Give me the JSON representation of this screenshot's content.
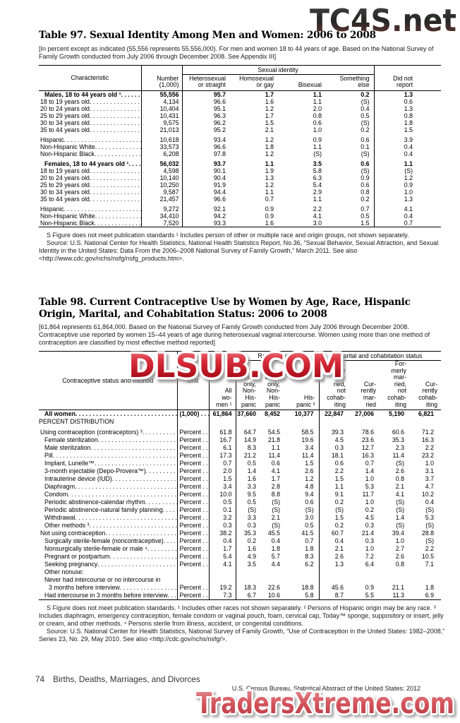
{
  "watermarks": {
    "top": "TC4S.net",
    "middle": "DLSUB.COM",
    "bottom": "TradersXtreme.com",
    "red_color": "#c41a28",
    "dark_color": "#3b3b3b"
  },
  "table97": {
    "title": "Table 97. Sexual Identity Among Men and Women: 2006 to 2008",
    "note": "[In percent except as indicated (55,556 represents 55,556,000). For men and women 18 to 44 years of age. Based on the National Survey of Family Growth conducted from July 2006 through December 2008. See Appendix III]",
    "header": {
      "characteristic": "Characteristic",
      "number": "Number\n(1,000)",
      "group": "Sexual identity",
      "identity_cols": [
        "Heterosexual\nor straight",
        "Homosexual\nor gay",
        "Bisexual",
        "Something\nelse"
      ],
      "did_not_report": "Did not\nreport"
    },
    "rows": [
      {
        "label": "Males, 18 to 44 years old ¹",
        "bold": true,
        "values": [
          "55,556",
          "95.7",
          "1.7",
          "1.1",
          "0.2",
          "1.3"
        ]
      },
      {
        "label": "18 to 19 years old",
        "values": [
          "4,134",
          "96.6",
          "1.6",
          "1.1",
          "(S)",
          "0.6"
        ]
      },
      {
        "label": "20 to 24 years old",
        "values": [
          "10,404",
          "95.1",
          "1.2",
          "2.0",
          "0.4",
          "1.3"
        ]
      },
      {
        "label": "25 to 29 years old",
        "values": [
          "10,431",
          "96.3",
          "1.7",
          "0.8",
          "0.5",
          "0.8"
        ]
      },
      {
        "label": "30 to 34 years old",
        "values": [
          "9,575",
          "96.2",
          "1.5",
          "0.6",
          "(S)",
          "1.8"
        ]
      },
      {
        "label": "35 to 44 years old",
        "values": [
          "21,013",
          "95.2",
          "2.1",
          "1.0",
          "0.2",
          "1.5"
        ]
      },
      {
        "label": "Hispanic",
        "gap": true,
        "values": [
          "10,618",
          "93.4",
          "1.2",
          "0.9",
          "0.6",
          "3.9"
        ]
      },
      {
        "label": "Non-Hispanic White",
        "values": [
          "33,573",
          "96.6",
          "1.8",
          "1.1",
          "0.1",
          "0.4"
        ]
      },
      {
        "label": "Non-Hispanic Black",
        "values": [
          "6,208",
          "97.8",
          "1.2",
          "(S)",
          "(S)",
          "0.4"
        ]
      },
      {
        "label": "Females, 18 to 44 years old ¹",
        "bold": true,
        "gap": true,
        "values": [
          "56,032",
          "93.7",
          "1.1",
          "3.5",
          "0.6",
          "1.1"
        ]
      },
      {
        "label": "18 to 19 years old",
        "values": [
          "4,598",
          "90.1",
          "1.9",
          "5.8",
          "(S)",
          "(S)"
        ]
      },
      {
        "label": "20 to 24 years old",
        "values": [
          "10,140",
          "90.4",
          "1.3",
          "6.3",
          "0.9",
          "1.2"
        ]
      },
      {
        "label": "25 to 29 years old",
        "values": [
          "10,250",
          "91.9",
          "1.2",
          "5.4",
          "0.6",
          "0.9"
        ]
      },
      {
        "label": "30 to 34 years old",
        "values": [
          "9,587",
          "94.4",
          "1.1",
          "2.9",
          "0.8",
          "1.0"
        ]
      },
      {
        "label": "35 to 44 years old",
        "values": [
          "21,457",
          "96.6",
          "0.7",
          "1.1",
          "0.2",
          "1.3"
        ]
      },
      {
        "label": "Hispanic",
        "gap": true,
        "values": [
          "9,272",
          "92.1",
          "0.9",
          "2.2",
          "0.7",
          "4.1"
        ]
      },
      {
        "label": "Non-Hispanic White",
        "values": [
          "34,410",
          "94.2",
          "0.9",
          "4.1",
          "0.5",
          "0.4"
        ]
      },
      {
        "label": "Non-Hispanic Black",
        "values": [
          "7,520",
          "93.3",
          "1.6",
          "3.0",
          "1.5",
          "0.7"
        ]
      }
    ],
    "footnotes": [
      "S Figure does not meet publication standards ¹ Includes person of other or multiple race and origin groups, not shown separately.",
      "Source: U.S. National Center for Health Statistics, National Health Statistics Report, No.36, “Sexual Behavior, Sexual Attraction, and Sexual Identity in the United States: Data From the 2006–2008 National Survey of Family Growth,” March 2011. See also <http://www.cdc.gov/nchs/nsfg/nsfg_products.htm>."
    ]
  },
  "table98": {
    "title": "Table 98. Current Contraceptive Use by Women by Age, Race, Hispanic\nOrigin, Marital, and Cohabitation Status: 2006 to 2008",
    "note": "[61,864 represents 61,864,000. Based on the National Survey of Family Growth conducted from July 2006 through December 2008. Contraceptive use reported by women 15–44 years of age during heterosexual vaginal intercourse. Women using more than one method of contraception are classified by most effective method reported]",
    "header": {
      "method": "Contraceptive status and method",
      "unit": "Unit",
      "all_women": "All\nwo-\nmen ¹",
      "race_group": "Race/ethnicity",
      "race_cols": [
        "White\nonly,\nNon-\nHis-\npanic",
        "Black\nonly,\nNon-\nHis-\npanic",
        "His-\npanic ²"
      ],
      "marital_group": "Marital and cohabitation status",
      "marital_cols": [
        "Never\nmar-\nried,\nnot\ncohab-\niting",
        "Cur-\nrently\nmar-\nried",
        "For-\nmerly\nmar-\nried,\nnot\ncohab-\niting",
        "Cur-\nrently\ncohab-\niting"
      ]
    },
    "rows": [
      {
        "label": "All women",
        "bold": true,
        "unit": "(1,000) . . .",
        "indent": 0,
        "values": [
          "61,864",
          "37,660",
          "8,452",
          "10,377",
          "22,847",
          "27,006",
          "5,190",
          "6,821"
        ]
      },
      {
        "label": "PERCENT DISTRIBUTION",
        "section": true,
        "indent": 0
      },
      {
        "label": "Using contraception (contraceptors) ³",
        "unit": "Percent . .",
        "indent": 0,
        "gap": true,
        "values": [
          "61.8",
          "64.7",
          "54.5",
          "58.5",
          "39.3",
          "78.6",
          "60.6",
          "71.2"
        ]
      },
      {
        "label": "Female sterilization",
        "unit": "Percent . .",
        "indent": 1,
        "values": [
          "16.7",
          "14.9",
          "21.8",
          "19.6",
          "4.5",
          "23.6",
          "35.3",
          "16.3"
        ]
      },
      {
        "label": "Male sterilization",
        "unit": "Percent . .",
        "indent": 1,
        "values": [
          "6.1",
          "8.3",
          "1.1",
          "3.4",
          "0.3",
          "12.7",
          "2.3",
          "2.2"
        ]
      },
      {
        "label": "Pill",
        "unit": "Percent . .",
        "indent": 1,
        "values": [
          "17.3",
          "21.2",
          "11.4",
          "11.4",
          "18.1",
          "16.3",
          "11.4",
          "23.2"
        ]
      },
      {
        "label": "Implant, Lunelle™",
        "unit": "Percent . .",
        "indent": 1,
        "values": [
          "0.7",
          "0.5",
          "0.6",
          "1.5",
          "0.6",
          "0.7",
          "(S)",
          "1.0"
        ]
      },
      {
        "label": "3-month injectable (Depo-Provera™)",
        "unit": "Percent . .",
        "indent": 1,
        "values": [
          "2.0",
          "1.4",
          "4.1",
          "2.6",
          "2.2",
          "1.4",
          "2.6",
          "3.1"
        ]
      },
      {
        "label": "Intrauterine device (IUD)",
        "unit": "Percent . .",
        "indent": 1,
        "values": [
          "1.5",
          "1.6",
          "1.7",
          "1.2",
          "1.5",
          "1.0",
          "0.8",
          "3.7"
        ]
      },
      {
        "label": "Diaphragm",
        "unit": "Percent . .",
        "indent": 1,
        "values": [
          "3.4",
          "3.3",
          "2.8",
          "4.8",
          "1.1",
          "5.3",
          "2.1",
          "4.7"
        ]
      },
      {
        "label": "Condom",
        "unit": "Percent . .",
        "indent": 1,
        "values": [
          "10.0",
          "9.5",
          "8.8",
          "9.4",
          "9.1",
          "11.7",
          "4.1",
          "10.2"
        ]
      },
      {
        "label": "Periodic abstinence-calendar rhythm",
        "unit": "Percent . .",
        "indent": 1,
        "values": [
          "0.5",
          "0.5",
          "(S)",
          "0.6",
          "0.2",
          "1.0",
          "(S)",
          "0.4"
        ]
      },
      {
        "label": "Periodic abstinence-natural family planning",
        "unit": "Percent . .",
        "indent": 1,
        "values": [
          "0.1",
          "(S)",
          "(S)",
          "(S)",
          "(S)",
          "0.2",
          "(S)",
          "(S)"
        ]
      },
      {
        "label": "Withdrawal",
        "unit": "Percent . .",
        "indent": 1,
        "values": [
          "3.2",
          "3.3",
          "2.1",
          "3.0",
          "1.5",
          "4.5",
          "1.4",
          "5.3"
        ]
      },
      {
        "label": "Other methods ³",
        "unit": "Percent . .",
        "indent": 1,
        "values": [
          "0.3",
          "0.3",
          "(S)",
          "0.5",
          "0.2",
          "0.3",
          "(S)",
          "(S)"
        ]
      },
      {
        "label": "Not using contraception",
        "unit": "Percent . .",
        "indent": 0,
        "values": [
          "38.2",
          "35.3",
          "45.5",
          "41.5",
          "60.7",
          "21.4",
          "39.4",
          "28.8"
        ]
      },
      {
        "label": "Surgically sterile-female (noncontraceptive)",
        "unit": "Percent . .",
        "indent": 1,
        "values": [
          "0.4",
          "0.2",
          "0.4",
          "0.7",
          "0.4",
          "0.3",
          "1.0",
          "(S)"
        ]
      },
      {
        "label": "Nonsurgically sterile-female or male ⁴",
        "unit": "Percent . .",
        "indent": 1,
        "values": [
          "1.7",
          "1.6",
          "1.8",
          "1.8",
          "2.1",
          "1.0",
          "2.7",
          "2.2"
        ]
      },
      {
        "label": "Pregnant or postpartum",
        "unit": "Percent . .",
        "indent": 1,
        "values": [
          "5.4",
          "4.9",
          "5.7",
          "8.3",
          "2.6",
          "7.2",
          "2.6",
          "10.5"
        ]
      },
      {
        "label": "Seeking pregnancy",
        "unit": "Percent . .",
        "indent": 1,
        "values": [
          "4.1",
          "3.5",
          "4.4",
          "6.2",
          "1.3",
          "6.4",
          "0.8",
          "7.1"
        ]
      },
      {
        "label": "Other nonuse:",
        "indent": 1,
        "nodots": true
      },
      {
        "label": "Never had intercourse or no intercourse in",
        "indent": 1,
        "nodots": true
      },
      {
        "label": "3 months before interview",
        "unit": "Percent . .",
        "indent": 2,
        "values": [
          "19.2",
          "18.3",
          "22.6",
          "18.8",
          "45.6",
          "0.9",
          "21.1",
          "1.8"
        ]
      },
      {
        "label": "Had intercourse in 3 months before interview",
        "unit": "Percent . .",
        "indent": 1,
        "values": [
          "7.3",
          "6.7",
          "10.6",
          "5.8",
          "8.7",
          "5.5",
          "11.3",
          "6.9"
        ]
      }
    ],
    "footnotes": [
      "S Figure does not meet publication standards. ¹ Includes other races not shown separately. ² Persons of Hispanic origin may be any race. ³ Includes diaphragm, emergency contraception, female condom or vaginal pouch, foam, cervical cap, Today™ sponge, suppository or insert, jelly or cream, and other methods. ⁴ Persons sterile from illness, accident, or congenital conditions.",
      "Source: U.S. National Center for Health Statistics, National Survey of Family Growth, “Use of Contraception in the United States: 1982–2008,” Series 23, No. 29, May 2010. See also <http://cdc.gov/nchs/nsfg/>."
    ]
  },
  "footer": {
    "page_number": "74",
    "section_title": "Births, Deaths, Marriages, and Divorces",
    "source": "U.S. Census Bureau, Statistical Abstract of the United States: 2012"
  }
}
